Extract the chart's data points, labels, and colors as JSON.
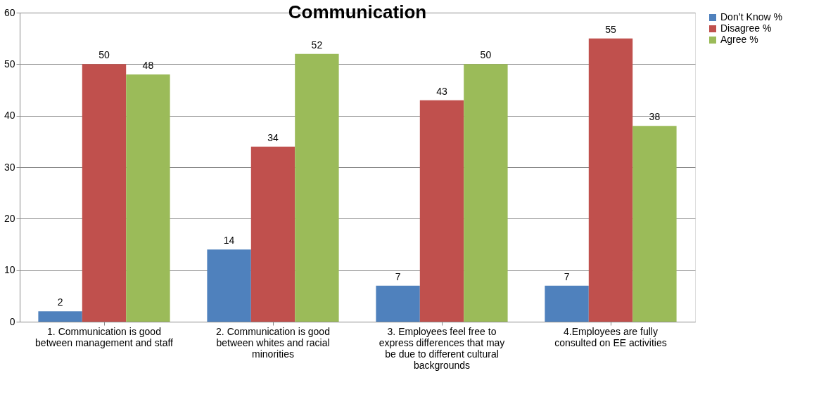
{
  "chart_data": {
    "type": "bar",
    "title": "Communication",
    "categories": [
      "1. Communication is good between   management and staff",
      "2. Communication is good between whites and racial minorities",
      "3. Employees feel free to express differences that may be due to different cultural backgrounds",
      "4.Employees are fully consulted on EE activities"
    ],
    "series": [
      {
        "name": "Don’t Know %",
        "color": "#4f81bd",
        "values": [
          2,
          14,
          7,
          7
        ]
      },
      {
        "name": "Disagree %",
        "color": "#c0504d",
        "values": [
          50,
          34,
          43,
          55
        ]
      },
      {
        "name": "Agree %",
        "color": "#9bbb59",
        "values": [
          48,
          52,
          50,
          38
        ]
      }
    ],
    "ylim": [
      0,
      60
    ],
    "yticks": [
      0,
      10,
      20,
      30,
      40,
      50,
      60
    ],
    "grid": "y",
    "legend": "right",
    "data_labels": true
  }
}
